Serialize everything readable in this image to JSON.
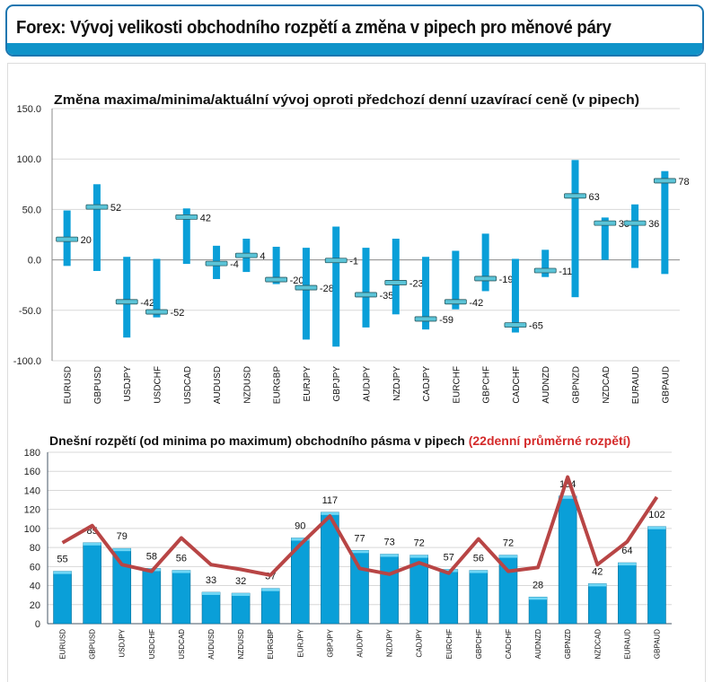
{
  "header": {
    "title": "Forex: Vývoj velikosti obchodního rozpětí a změna v pipech pro měnové páry"
  },
  "colors": {
    "bar": "#0a9fd8",
    "marker": "#5bc4d8",
    "avg_line": "#b84545",
    "title_accent": "#d42a2a",
    "header_border": "#1b76b0"
  },
  "chart_data": [
    {
      "type": "range-bar",
      "title": "Změna maxima/minima/aktuální vývoj oproti předchozí denní uzavírací ceně (v pipech)",
      "ylim": [
        -100,
        150
      ],
      "yticks": [
        "150.0",
        "100.0",
        "50.0",
        "0.0",
        "-50.0",
        "-100.0"
      ],
      "ytick_values": [
        150,
        100,
        50,
        0,
        -50,
        -100
      ],
      "grid": true,
      "categories": [
        "EURUSD",
        "GBPUSD",
        "USDJPY",
        "USDCHF",
        "USDCAD",
        "AUDUSD",
        "NZDUSD",
        "EURGBP",
        "EURJPY",
        "GBPJPY",
        "AUDJPY",
        "NZDJPY",
        "CADJPY",
        "EURCHF",
        "GBPCHF",
        "CADCHF",
        "AUDNZD",
        "GBPNZD",
        "NZDCAD",
        "EURAUD",
        "GBPAUD"
      ],
      "max": [
        49,
        75,
        3,
        1,
        51,
        14,
        21,
        13,
        12,
        33,
        12,
        21,
        3,
        9,
        26,
        1,
        10,
        99,
        42,
        55,
        88
      ],
      "min": [
        -6,
        -11,
        -77,
        -57,
        -4,
        -19,
        -12,
        -24,
        -79,
        -86,
        -67,
        -54,
        -69,
        -49,
        -31,
        -72,
        -17,
        -37,
        0,
        -8,
        -14
      ],
      "current": [
        20,
        52,
        -42,
        -52,
        42,
        -4,
        4,
        -20,
        -28,
        -1,
        -35,
        -23,
        -59,
        -42,
        -19,
        -65,
        -11,
        63,
        36,
        36,
        78
      ],
      "labels": [
        "20",
        "52",
        "-42",
        "-52",
        "42",
        "-4",
        "4",
        "-20",
        "-28",
        "-1",
        "-35",
        "-23",
        "-59",
        "-42",
        "-19",
        "-65",
        "-11",
        "63",
        "36",
        "36",
        "78"
      ]
    },
    {
      "type": "bar+line",
      "title": "Dnešní rozpětí (od minima po maximum) obchodního pásma v pipech ",
      "title_highlight": "(22denní průměrné rozpětí)",
      "ylim": [
        0,
        180
      ],
      "yticks": [
        "0",
        "20",
        "40",
        "60",
        "80",
        "100",
        "120",
        "140",
        "160",
        "180"
      ],
      "ytick_values": [
        0,
        20,
        40,
        60,
        80,
        100,
        120,
        140,
        160,
        180
      ],
      "grid": true,
      "categories": [
        "EURUSD",
        "GBPUSD",
        "USDJPY",
        "USDCHF",
        "USDCAD",
        "AUDUSD",
        "NZDUSD",
        "EURGBP",
        "EURJPY",
        "GBPJPY",
        "AUDJPY",
        "NZDJPY",
        "CADJPY",
        "EURCHF",
        "GBPCHF",
        "CADCHF",
        "AUDNZD",
        "GBPNZD",
        "NZDCAD",
        "EURAUD",
        "GBPAUD"
      ],
      "series": [
        {
          "type": "bar",
          "values": [
            55,
            85,
            79,
            58,
            56,
            33,
            32,
            37,
            90,
            117,
            77,
            73,
            72,
            57,
            56,
            72,
            28,
            134,
            42,
            64,
            102
          ],
          "labels": [
            "55",
            "85",
            "79",
            "58",
            "56",
            "33",
            "32",
            "37",
            "90",
            "117",
            "77",
            "73",
            "72",
            "57",
            "56",
            "72",
            "28",
            "134",
            "42",
            "64",
            "102"
          ]
        },
        {
          "type": "line",
          "values": [
            85,
            103,
            62,
            55,
            90,
            62,
            57,
            51,
            83,
            113,
            58,
            52,
            64,
            53,
            89,
            55,
            59,
            154,
            62,
            86,
            133
          ]
        }
      ]
    }
  ]
}
